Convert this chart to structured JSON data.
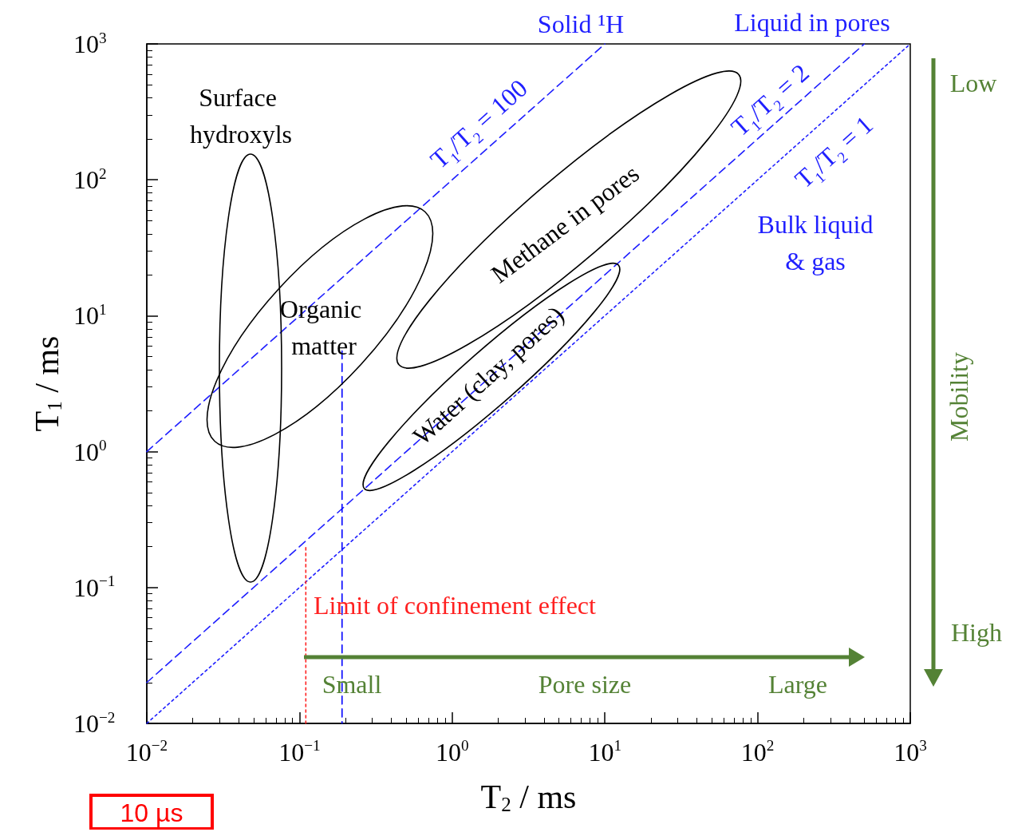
{
  "chart_data": {
    "type": "line",
    "xlabel": "T$_{2}$ / ms",
    "ylabel": "T$_{1}$ / ms",
    "log": "xy",
    "xlim": [
      0.01,
      1000
    ],
    "ylim": [
      0.01,
      1000
    ],
    "xticks": [
      {
        "value": 0.01,
        "label": "10$^{−2}$"
      },
      {
        "value": 0.1,
        "label": "10$^{−1}$"
      },
      {
        "value": 1,
        "label": "10$^{0}$"
      },
      {
        "value": 10,
        "label": "10$^{1}$"
      },
      {
        "value": 100,
        "label": "10$^{2}$"
      },
      {
        "value": 1000,
        "label": "10$^{3}$"
      }
    ],
    "yticks": [
      {
        "value": 0.01,
        "label": "10$^{−2}$"
      },
      {
        "value": 0.1,
        "label": "10$^{−1}$"
      },
      {
        "value": 1,
        "label": "10$^{0}$"
      },
      {
        "value": 10,
        "label": "10$^{1}$"
      },
      {
        "value": 100,
        "label": "10$^{2}$"
      },
      {
        "value": 1000,
        "label": "10$^{3}$"
      }
    ],
    "marker": "none",
    "legend": false,
    "grid": false,
    "series": [
      {
        "name": "T$_{1}$/T$_{2}$ = 100",
        "color": "#1f1fff",
        "line_style": "dashed",
        "x": [
          0.01,
          10
        ],
        "values": [
          1,
          1000
        ]
      },
      {
        "name": "T$_{1}$/T$_{2}$ = 2",
        "color": "#1f1fff",
        "line_style": "dashed",
        "x": [
          0.01,
          500
        ],
        "values": [
          0.02,
          1000
        ]
      },
      {
        "name": "T$_{1}$/T$_{2}$ = 1",
        "color": "#1f1fff",
        "line_style": "dotted",
        "x": [
          0.01,
          1000
        ],
        "values": [
          0.01,
          1000
        ]
      },
      {
        "name": "Limit of confinement effect",
        "color": "#ff2020",
        "line_style": "dotted",
        "x": [
          0.11,
          0.11
        ],
        "values": [
          0.01,
          0.2
        ]
      },
      {
        "color": "#0000ff",
        "line_style": "dashed",
        "x": [
          0.19,
          0.19
        ],
        "values": [
          5.5,
          0.01
        ]
      }
    ],
    "annotations": [
      "Solid ¹H",
      "Liquid in pores",
      "Bulk liquid\n& gas",
      "Small",
      "Pore size",
      "Large",
      "Low",
      "Mobility",
      "High",
      "10 µs",
      "Surface hydroxyls",
      "Organic matter",
      "Methane in pores",
      "Water (clay, pores)"
    ]
  }
}
